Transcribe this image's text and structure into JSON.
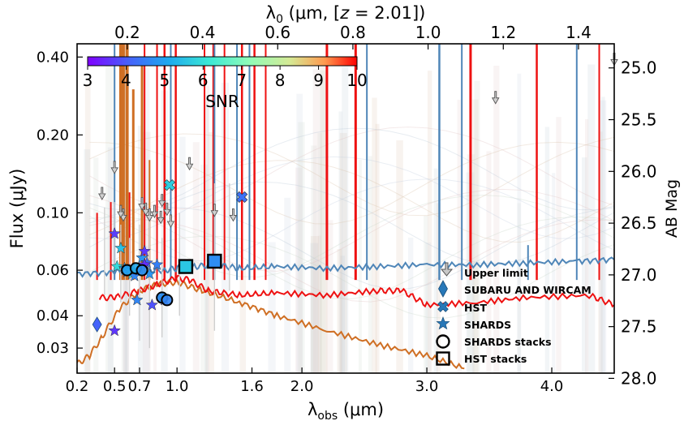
{
  "chart_data": {
    "type": "scatter",
    "title": "",
    "xlabel": "λobs (μm)",
    "xlabel_main": "λ",
    "xlabel_sub": "obs",
    "xlabel_unit": " (μm)",
    "ylabel": "Flux (μJy)",
    "top_xlabel": "λ0 (μm, [z = 2.01])",
    "top_xlabel_main": "λ",
    "top_xlabel_sub": "0",
    "top_xlabel_unit": " (μm, [",
    "top_xlabel_z": "z",
    "top_xlabel_eq": " = 2.01])",
    "right_ylabel": "AB Mag",
    "redshift": 2.01,
    "xlim": [
      0.2,
      4.5
    ],
    "ylim": [
      0.024,
      0.45
    ],
    "yscale": "log",
    "x_ticks": [
      0.2,
      0.5,
      0.7,
      1.0,
      1.6,
      2.0,
      3.0,
      4.0
    ],
    "x_tick_labels": [
      "0.2",
      "0.5",
      "0.7",
      "1.0",
      "1.6",
      "2.0",
      "3.0",
      "4.0"
    ],
    "top_ticks": [
      0.2,
      0.4,
      0.6,
      0.8,
      1.0,
      1.2,
      1.4
    ],
    "top_tick_labels": [
      "0.2",
      "0.4",
      "0.6",
      "0.8",
      "1.0",
      "1.2",
      "1.4"
    ],
    "y_ticks": [
      0.03,
      0.04,
      0.06,
      0.1,
      0.2,
      0.4
    ],
    "y_tick_labels": [
      "0.03",
      "0.04",
      "0.06",
      "0.10",
      "0.20",
      "0.40"
    ],
    "mag_ticks": [
      25.0,
      25.5,
      26.0,
      26.5,
      27.0,
      27.5,
      28.0
    ],
    "mag_tick_labels": [
      "25.0",
      "25.5",
      "26.0",
      "26.5",
      "27.0",
      "27.5",
      "28.0"
    ],
    "colorbar": {
      "label": "SNR",
      "min": 3,
      "max": 10,
      "ticks": [
        3,
        4,
        5,
        6,
        7,
        8,
        9,
        10
      ],
      "tick_labels": [
        "3",
        "4",
        "5",
        "6",
        "7",
        "8",
        "9",
        "10"
      ]
    },
    "legend": {
      "position": "lower-right",
      "entries": [
        {
          "label": "Upper limit",
          "marker": "arrow"
        },
        {
          "label": "SUBARU AND WIRCAM",
          "marker": "diamond"
        },
        {
          "label": "HST",
          "marker": "x-filled"
        },
        {
          "label": "SHARDS",
          "marker": "star"
        },
        {
          "label": "SHARDS stacks",
          "marker": "circle-open"
        },
        {
          "label": "HST stacks",
          "marker": "square-open"
        }
      ]
    },
    "series": [
      {
        "name": "Upper limit",
        "marker": "arrow",
        "x": [
          0.4,
          0.5,
          0.57,
          0.72,
          0.75,
          0.78,
          0.82,
          0.87,
          0.92,
          0.88,
          0.95,
          1.1,
          1.3,
          1.45,
          0.55,
          3.55,
          4.5
        ],
        "y": [
          0.115,
          0.145,
          0.095,
          0.105,
          0.1,
          0.095,
          0.098,
          0.093,
          0.1,
          0.108,
          0.09,
          0.15,
          0.099,
          0.095,
          0.098,
          0.27,
          0.38
        ]
      },
      {
        "name": "SUBARU AND WIRCAM",
        "marker": "diamond",
        "x": [
          0.36
        ],
        "y": [
          0.037
        ],
        "snr": [
          4.1
        ]
      },
      {
        "name": "HST",
        "marker": "x-filled",
        "x": [
          0.94,
          1.52
        ],
        "y": [
          0.128,
          0.115
        ],
        "snr": [
          5.7,
          4.3
        ]
      },
      {
        "name": "SHARDS",
        "marker": "star",
        "x": [
          0.5,
          0.52,
          0.55,
          0.58,
          0.6,
          0.62,
          0.64,
          0.66,
          0.68,
          0.7,
          0.72,
          0.74,
          0.76,
          0.78,
          0.8,
          0.84,
          0.88,
          0.9,
          0.5,
          0.74
        ],
        "y": [
          0.083,
          0.062,
          0.073,
          0.061,
          0.059,
          0.06,
          0.058,
          0.057,
          0.046,
          0.06,
          0.067,
          0.071,
          0.064,
          0.058,
          0.044,
          0.063,
          0.047,
          0.046,
          0.035,
          0.063
        ],
        "snr": [
          3.7,
          5.9,
          5.5,
          4.9,
          4.4,
          5.2,
          6.0,
          4.6,
          4.6,
          4.0,
          4.8,
          3.6,
          4.2,
          4.8,
          3.9,
          4.5,
          5.2,
          3.9,
          3.6,
          3.5
        ]
      },
      {
        "name": "SHARDS stacks",
        "marker": "circle-open",
        "x": [
          0.6,
          0.67,
          0.72,
          0.88,
          0.92
        ],
        "y": [
          0.06,
          0.061,
          0.06,
          0.047,
          0.046
        ],
        "snr": [
          5.0,
          5.1,
          4.8,
          4.7,
          4.6
        ]
      },
      {
        "name": "HST stacks",
        "marker": "square-open",
        "x": [
          1.07,
          1.3
        ],
        "y": [
          0.062,
          0.065
        ],
        "snr": [
          5.6,
          4.7
        ]
      }
    ],
    "model_spectra": [
      {
        "name": "blue model",
        "color": "#4f86b8",
        "x": [
          0.2,
          0.5,
          0.7,
          0.9,
          1.0,
          1.15,
          1.3,
          1.5,
          1.8,
          2.2,
          2.6,
          3.0,
          3.4,
          3.8,
          4.2,
          4.5
        ],
        "y": [
          0.058,
          0.059,
          0.06,
          0.06,
          0.061,
          0.062,
          0.063,
          0.061,
          0.062,
          0.061,
          0.062,
          0.063,
          0.063,
          0.064,
          0.065,
          0.066
        ]
      },
      {
        "name": "orange model",
        "color": "#cf6f24",
        "x": [
          0.2,
          0.3,
          0.4,
          0.55,
          0.7,
          0.85,
          1.0,
          1.2,
          1.5,
          1.8,
          2.2,
          2.6,
          3.0,
          3.3
        ],
        "y": [
          0.026,
          0.028,
          0.033,
          0.043,
          0.05,
          0.053,
          0.054,
          0.05,
          0.045,
          0.04,
          0.035,
          0.031,
          0.028,
          0.025
        ]
      },
      {
        "name": "red model",
        "color": "#ee1111",
        "x": [
          0.38,
          0.5,
          0.7,
          0.85,
          1.0,
          1.1,
          1.25,
          1.5,
          1.8,
          2.2,
          2.6,
          2.8,
          3.0,
          3.4,
          3.8,
          4.3,
          4.5
        ],
        "y": [
          0.047,
          0.047,
          0.05,
          0.053,
          0.056,
          0.055,
          0.05,
          0.048,
          0.049,
          0.048,
          0.05,
          0.05,
          0.044,
          0.045,
          0.047,
          0.048,
          0.044
        ]
      }
    ]
  }
}
